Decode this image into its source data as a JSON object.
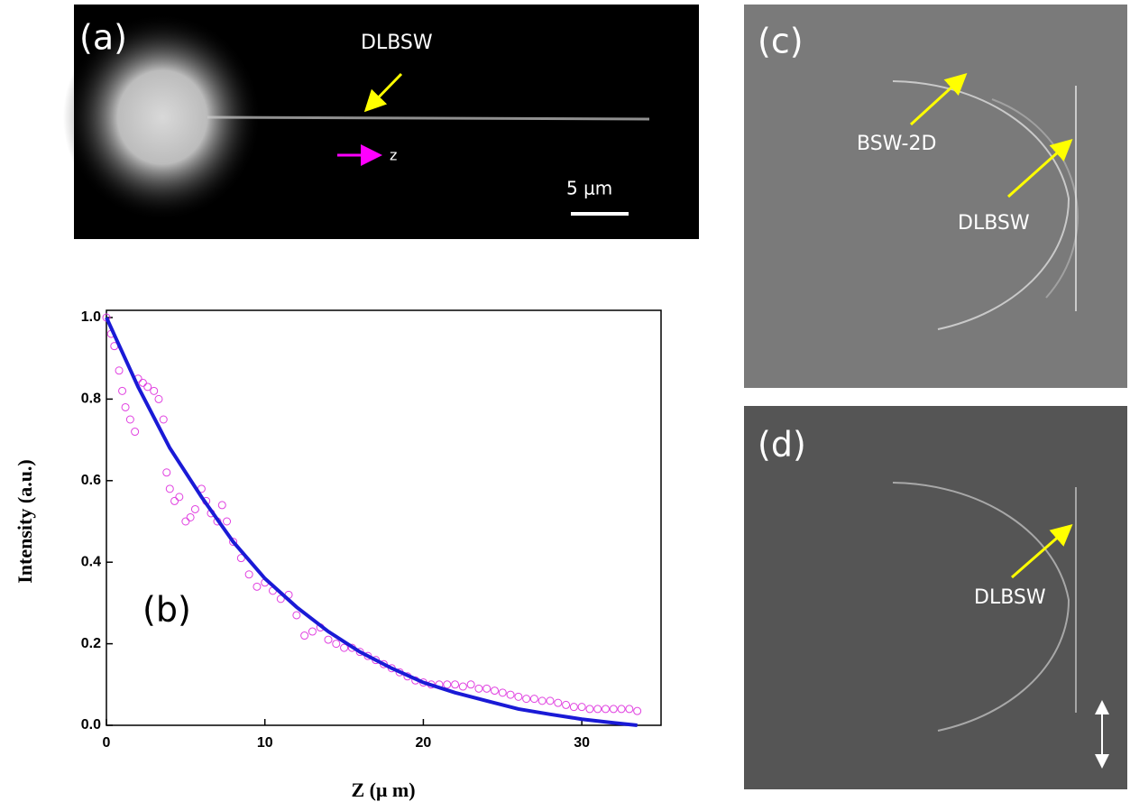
{
  "panels": {
    "a": {
      "label": "(a)",
      "arrow_label": "DLBSW",
      "direction_label": "z",
      "scale_label": "5 μm"
    },
    "c": {
      "label": "(c)",
      "arrow_labels": [
        "BSW-2D",
        "DLBSW"
      ]
    },
    "d": {
      "label": "(d)",
      "arrow_label": "DLBSW"
    }
  },
  "chart_data": {
    "type": "scatter",
    "panel_label": "(b)",
    "xlabel": "Z (μ m)",
    "ylabel": "Intensity (a.u.)",
    "xlim": [
      0,
      35
    ],
    "ylim": [
      0,
      1.0
    ],
    "xticks": [
      0,
      10,
      20,
      30
    ],
    "yticks": [
      {
        "value": 0,
        "label": "0.0"
      },
      0.2,
      0.4,
      0.6,
      0.8,
      {
        "value": 1,
        "label": "1.0"
      }
    ],
    "series": [
      {
        "kind": "line",
        "color": "#1a1ad6",
        "x": [
          0,
          2,
          4,
          6,
          8,
          10,
          12,
          14,
          16,
          18,
          20,
          22,
          24,
          26,
          28,
          30,
          32,
          33.5
        ],
        "values": [
          1.0,
          0.83,
          0.68,
          0.56,
          0.45,
          0.36,
          0.29,
          0.23,
          0.18,
          0.14,
          0.105,
          0.08,
          0.06,
          0.04,
          0.027,
          0.015,
          0.006,
          0.0
        ]
      },
      {
        "kind": "points",
        "color": "#e040e0",
        "x": [
          0,
          0.3,
          0.5,
          0.8,
          1.0,
          1.2,
          1.5,
          1.8,
          2,
          2.3,
          2.6,
          3,
          3.3,
          3.6,
          3.8,
          4,
          4.3,
          4.6,
          5,
          5.3,
          5.6,
          6,
          6.3,
          6.6,
          7,
          7.3,
          7.6,
          8,
          8.5,
          9,
          9.5,
          10,
          10.5,
          11,
          11.5,
          12,
          12.5,
          13,
          13.5,
          14,
          14.5,
          15,
          15.5,
          16,
          16.5,
          17,
          17.5,
          18,
          18.5,
          19,
          19.5,
          20,
          20.5,
          21,
          21.5,
          22,
          22.5,
          23,
          23.5,
          24,
          24.5,
          25,
          25.5,
          26,
          26.5,
          27,
          27.5,
          28,
          28.5,
          29,
          29.5,
          30,
          30.5,
          31,
          31.5,
          32,
          32.5,
          33,
          33.5
        ],
        "values": [
          1.0,
          0.96,
          0.93,
          0.87,
          0.82,
          0.78,
          0.75,
          0.72,
          0.85,
          0.84,
          0.83,
          0.82,
          0.8,
          0.75,
          0.62,
          0.58,
          0.55,
          0.56,
          0.5,
          0.51,
          0.53,
          0.58,
          0.55,
          0.52,
          0.5,
          0.54,
          0.5,
          0.45,
          0.41,
          0.37,
          0.34,
          0.35,
          0.33,
          0.31,
          0.32,
          0.27,
          0.22,
          0.23,
          0.24,
          0.21,
          0.2,
          0.19,
          0.19,
          0.18,
          0.17,
          0.16,
          0.15,
          0.14,
          0.13,
          0.12,
          0.11,
          0.105,
          0.1,
          0.1,
          0.1,
          0.1,
          0.095,
          0.1,
          0.09,
          0.09,
          0.085,
          0.08,
          0.075,
          0.07,
          0.065,
          0.065,
          0.06,
          0.06,
          0.055,
          0.05,
          0.045,
          0.045,
          0.04,
          0.04,
          0.04,
          0.04,
          0.04,
          0.04,
          0.035
        ]
      }
    ]
  }
}
